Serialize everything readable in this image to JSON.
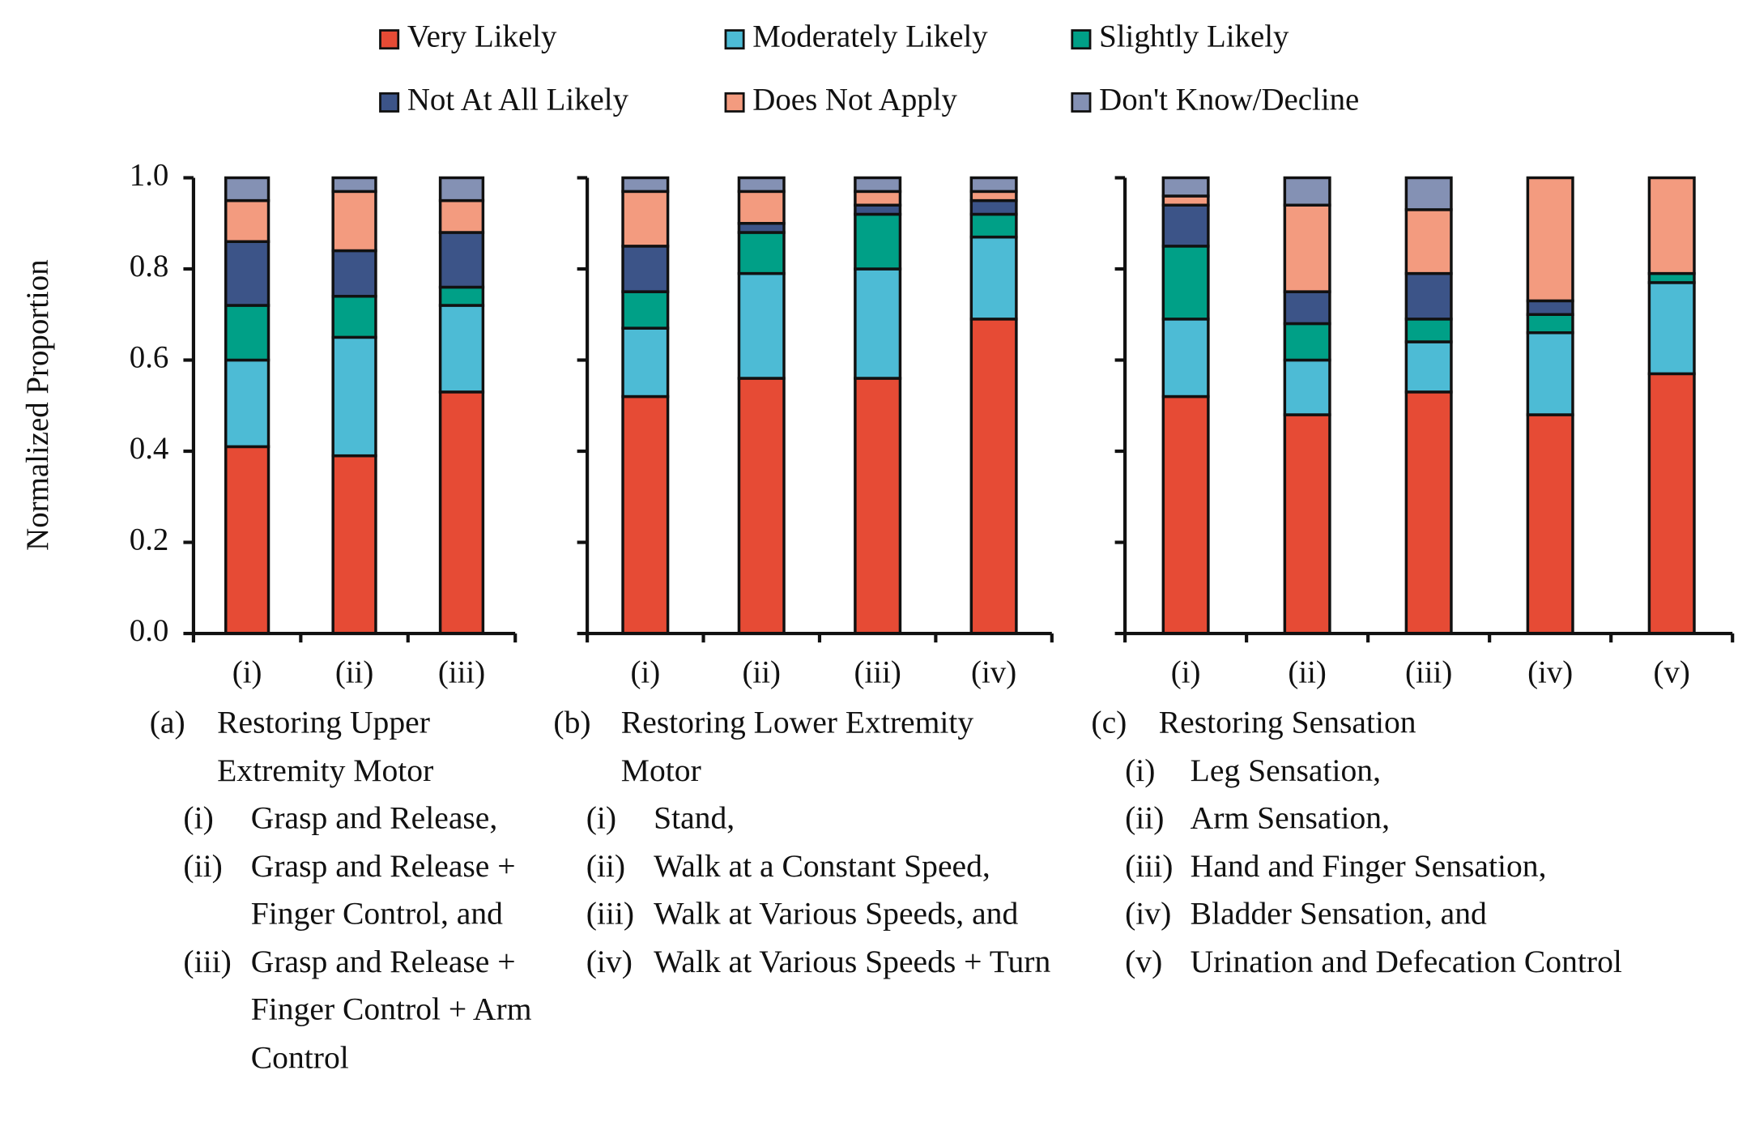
{
  "chart_data": [
    {
      "type": "bar",
      "stacked": true,
      "ylabel": "Normalized Proportion",
      "categories": [
        "(i)",
        "(ii)",
        "(iii)"
      ],
      "ylim": [
        0,
        1
      ],
      "yticks": [
        {
          "value": 0,
          "label": "0.0"
        },
        {
          "value": 0.2,
          "label": "0.2"
        },
        {
          "value": 0.4,
          "label": "0.4"
        },
        {
          "value": 0.6,
          "label": "0.6"
        },
        {
          "value": 0.8,
          "label": "0.8"
        },
        {
          "value": 1,
          "label": "1.0"
        }
      ],
      "series": [
        {
          "name": "Very Likely",
          "color": "#e64b35",
          "values": [
            0.41,
            0.39,
            0.53
          ]
        },
        {
          "name": "Moderately Likely",
          "color": "#4dbbd5",
          "values": [
            0.19,
            0.26,
            0.19
          ]
        },
        {
          "name": "Slightly Likely",
          "color": "#00a087",
          "values": [
            0.12,
            0.09,
            0.04
          ]
        },
        {
          "name": "Not At All Likely",
          "color": "#3c5488",
          "values": [
            0.14,
            0.1,
            0.12
          ]
        },
        {
          "name": "Does Not Apply",
          "color": "#f39b7f",
          "values": [
            0.09,
            0.13,
            0.07
          ]
        },
        {
          "name": "Don't Know/Decline",
          "color": "#8491b4",
          "values": [
            0.05,
            0.03,
            0.05
          ]
        }
      ],
      "caption": {
        "label": "(a)",
        "title": "Restoring Upper Extremity Motor",
        "items": [
          {
            "marker": "(i)",
            "text": "Grasp and Release,"
          },
          {
            "marker": "(ii)",
            "text": "Grasp and Release + Finger Control, and"
          },
          {
            "marker": "(iii)",
            "text": "Grasp and Release + Finger Control + Arm Control"
          }
        ]
      }
    },
    {
      "type": "bar",
      "stacked": true,
      "categories": [
        "(i)",
        "(ii)",
        "(iii)",
        "(iv)"
      ],
      "ylim": [
        0,
        1
      ],
      "yticks": [
        0,
        0.2,
        0.4,
        0.6,
        0.8,
        1
      ],
      "series": [
        {
          "color": "#e64b35",
          "values": [
            0.52,
            0.56,
            0.56,
            0.69
          ]
        },
        {
          "color": "#4dbbd5",
          "values": [
            0.15,
            0.23,
            0.24,
            0.18
          ]
        },
        {
          "color": "#00a087",
          "values": [
            0.08,
            0.09,
            0.12,
            0.05
          ]
        },
        {
          "color": "#3c5488",
          "values": [
            0.1,
            0.02,
            0.02,
            0.03
          ]
        },
        {
          "color": "#f39b7f",
          "values": [
            0.12,
            0.07,
            0.03,
            0.02
          ]
        },
        {
          "color": "#8491b4",
          "values": [
            0.03,
            0.03,
            0.03,
            0.03
          ]
        }
      ],
      "caption": {
        "label": "(b)",
        "title": "Restoring Lower Extremity Motor",
        "items": [
          {
            "marker": "(i)",
            "text": "Stand,"
          },
          {
            "marker": "(ii)",
            "text": "Walk at a Constant Speed,"
          },
          {
            "marker": "(iii)",
            "text": "Walk at Various Speeds, and"
          },
          {
            "marker": "(iv)",
            "text": "Walk at Various Speeds + Turn"
          }
        ]
      }
    },
    {
      "type": "bar",
      "stacked": true,
      "categories": [
        "(i)",
        "(ii)",
        "(iii)",
        "(iv)",
        "(v)"
      ],
      "ylim": [
        0,
        1
      ],
      "yticks": [
        0,
        0.2,
        0.4,
        0.6,
        0.8,
        1
      ],
      "series": [
        {
          "color": "#e64b35",
          "values": [
            0.52,
            0.48,
            0.53,
            0.48,
            0.57
          ]
        },
        {
          "color": "#4dbbd5",
          "values": [
            0.17,
            0.12,
            0.11,
            0.18,
            0.2
          ]
        },
        {
          "color": "#00a087",
          "values": [
            0.16,
            0.08,
            0.05,
            0.04,
            0.02
          ]
        },
        {
          "color": "#3c5488",
          "values": [
            0.09,
            0.07,
            0.1,
            0.03,
            0
          ]
        },
        {
          "color": "#f39b7f",
          "values": [
            0.02,
            0.19,
            0.14,
            0.27,
            0.21
          ]
        },
        {
          "color": "#8491b4",
          "values": [
            0.04,
            0.06,
            0.07,
            0,
            0
          ]
        }
      ],
      "caption": {
        "label": "(c)",
        "title": "Restoring Sensation",
        "items": [
          {
            "marker": "(i)",
            "text": "Leg Sensation,"
          },
          {
            "marker": "(ii)",
            "text": "Arm Sensation,"
          },
          {
            "marker": "(iii)",
            "text": "Hand and Finger Sensation,"
          },
          {
            "marker": "(iv)",
            "text": "Bladder Sensation, and"
          },
          {
            "marker": "(v)",
            "text": "Urination and Defecation Control"
          }
        ]
      }
    }
  ]
}
